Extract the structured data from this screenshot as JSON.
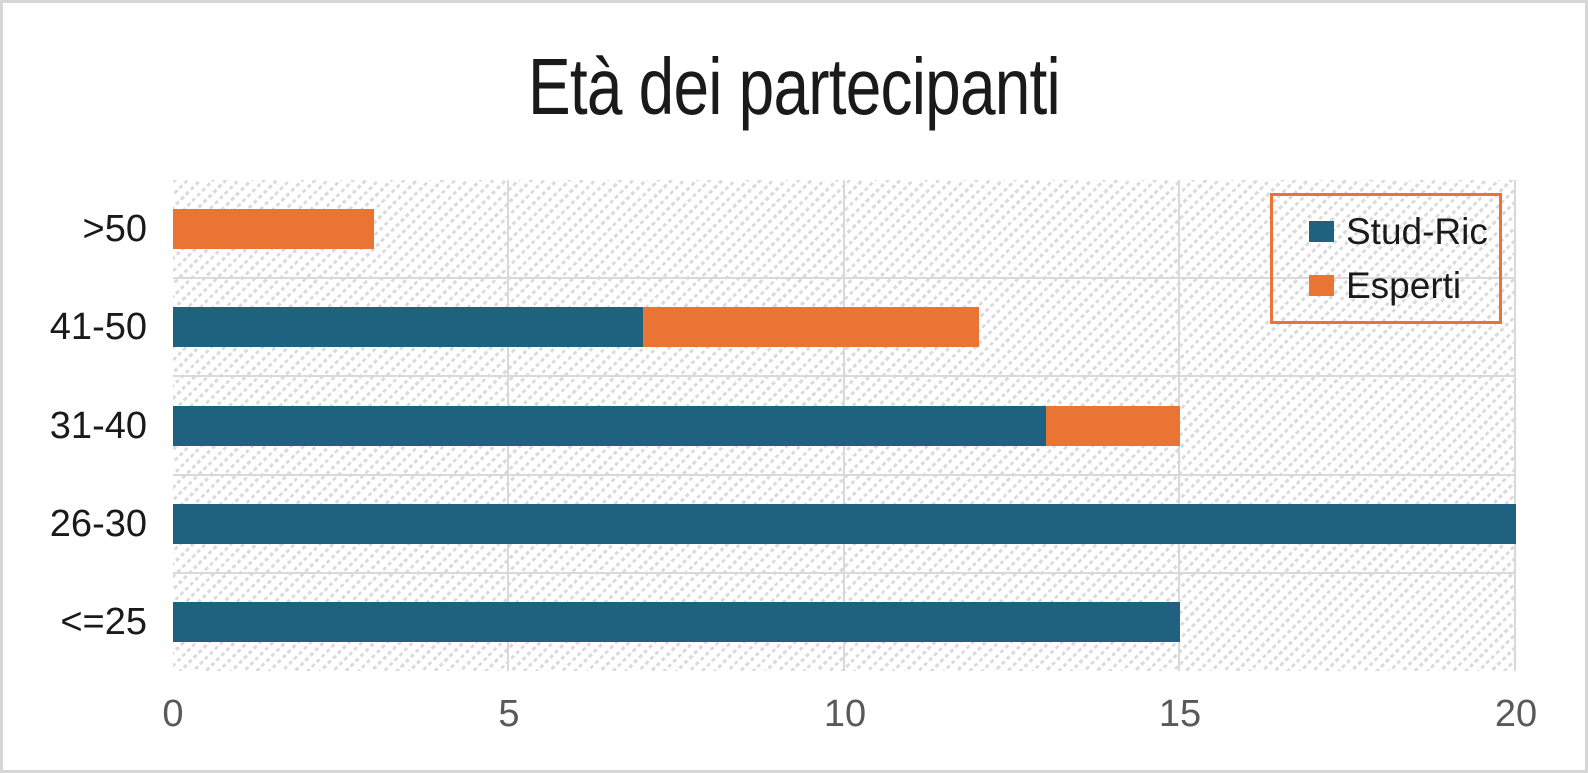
{
  "title": "Età dei partecipanti",
  "colors": {
    "stud_ric": "#1e627f",
    "esperti": "#e97434",
    "legend_border": "#e97434",
    "gridline": "#d9d9d9",
    "axis_tick_label": "#595959",
    "category_label": "#1a1a1a",
    "title_text": "#1a1a1a",
    "hatch_line": "#dbdbdb",
    "frame_border": "#d6d6d6"
  },
  "legend": {
    "position": "top-right",
    "border_color": "#e97434",
    "items": [
      {
        "label": "Stud-Ric",
        "color": "#1e627f"
      },
      {
        "label": "Esperti",
        "color": "#e97434"
      }
    ]
  },
  "chart_data": {
    "type": "bar",
    "orientation": "horizontal",
    "stacked": true,
    "title": "Età dei partecipanti",
    "categories_top_to_bottom": [
      ">50",
      "41-50",
      "31-40",
      "26-30",
      "<=25"
    ],
    "series": [
      {
        "name": "Stud-Ric",
        "color": "#1e627f",
        "values": [
          0,
          7,
          13,
          20,
          15
        ]
      },
      {
        "name": "Esperti",
        "color": "#e97434",
        "values": [
          3,
          5,
          2,
          0,
          0
        ]
      }
    ],
    "xlabel": "",
    "ylabel": "",
    "xlim": [
      0,
      20
    ],
    "xticks": [
      0,
      5,
      10,
      15,
      20
    ],
    "grid": true,
    "plot_background": "diagonal-hatch",
    "legend_position": "top-right"
  }
}
